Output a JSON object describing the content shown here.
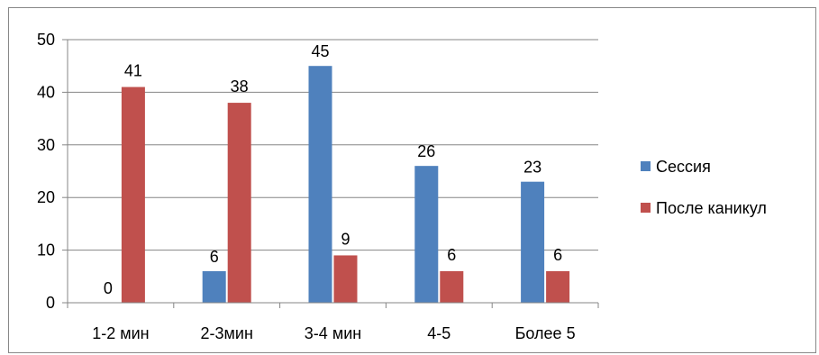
{
  "chart_data": {
    "type": "bar",
    "categories": [
      "1-2 мин",
      "2-3мин",
      "3-4 мин",
      "4-5",
      "Более 5"
    ],
    "series": [
      {
        "name": "Сессия",
        "values": [
          0,
          6,
          45,
          26,
          23
        ],
        "color": "#4F81BD"
      },
      {
        "name": "После каникул",
        "values": [
          41,
          38,
          9,
          6,
          6
        ],
        "color": "#C0504D"
      }
    ],
    "ylim": [
      0,
      50
    ],
    "yticks": [
      0,
      10,
      20,
      30,
      40,
      50
    ],
    "grid": true,
    "legend_position": "right"
  }
}
